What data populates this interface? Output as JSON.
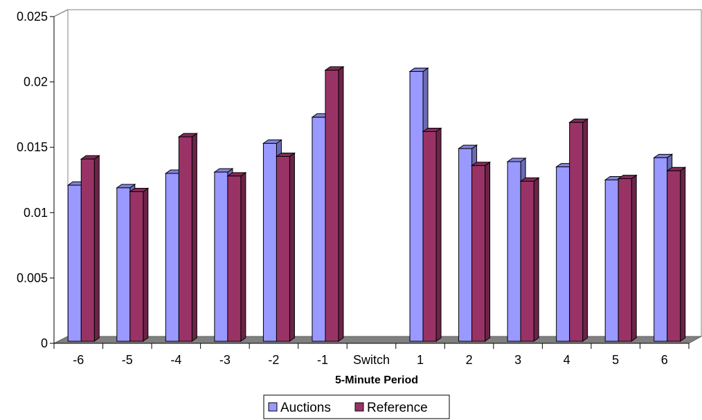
{
  "chart_data": {
    "type": "bar",
    "title": "",
    "xlabel": "5-Minute Period",
    "ylabel": "",
    "ylim": [
      0,
      0.025
    ],
    "yticks": [
      "0",
      "0.005",
      "0.01",
      "0.015",
      "0.02",
      "0.025"
    ],
    "grid": true,
    "legend_position": "bottom",
    "categories": [
      "-6",
      "-5",
      "-4",
      "-3",
      "-2",
      "-1",
      "Switch",
      "1",
      "2",
      "3",
      "4",
      "5",
      "6"
    ],
    "series": [
      {
        "name": "Auctions",
        "color": "#9999FF",
        "values": [
          0.0121,
          0.0119,
          0.013,
          0.0131,
          0.0153,
          0.0173,
          null,
          0.0208,
          0.0149,
          0.0139,
          0.0135,
          0.0125,
          0.0142
        ]
      },
      {
        "name": "Reference",
        "color": "#993366",
        "values": [
          0.0141,
          0.0116,
          0.0158,
          0.0128,
          0.0143,
          0.0209,
          null,
          0.0162,
          0.0136,
          0.0124,
          0.0169,
          0.0126,
          0.0132
        ]
      }
    ]
  }
}
